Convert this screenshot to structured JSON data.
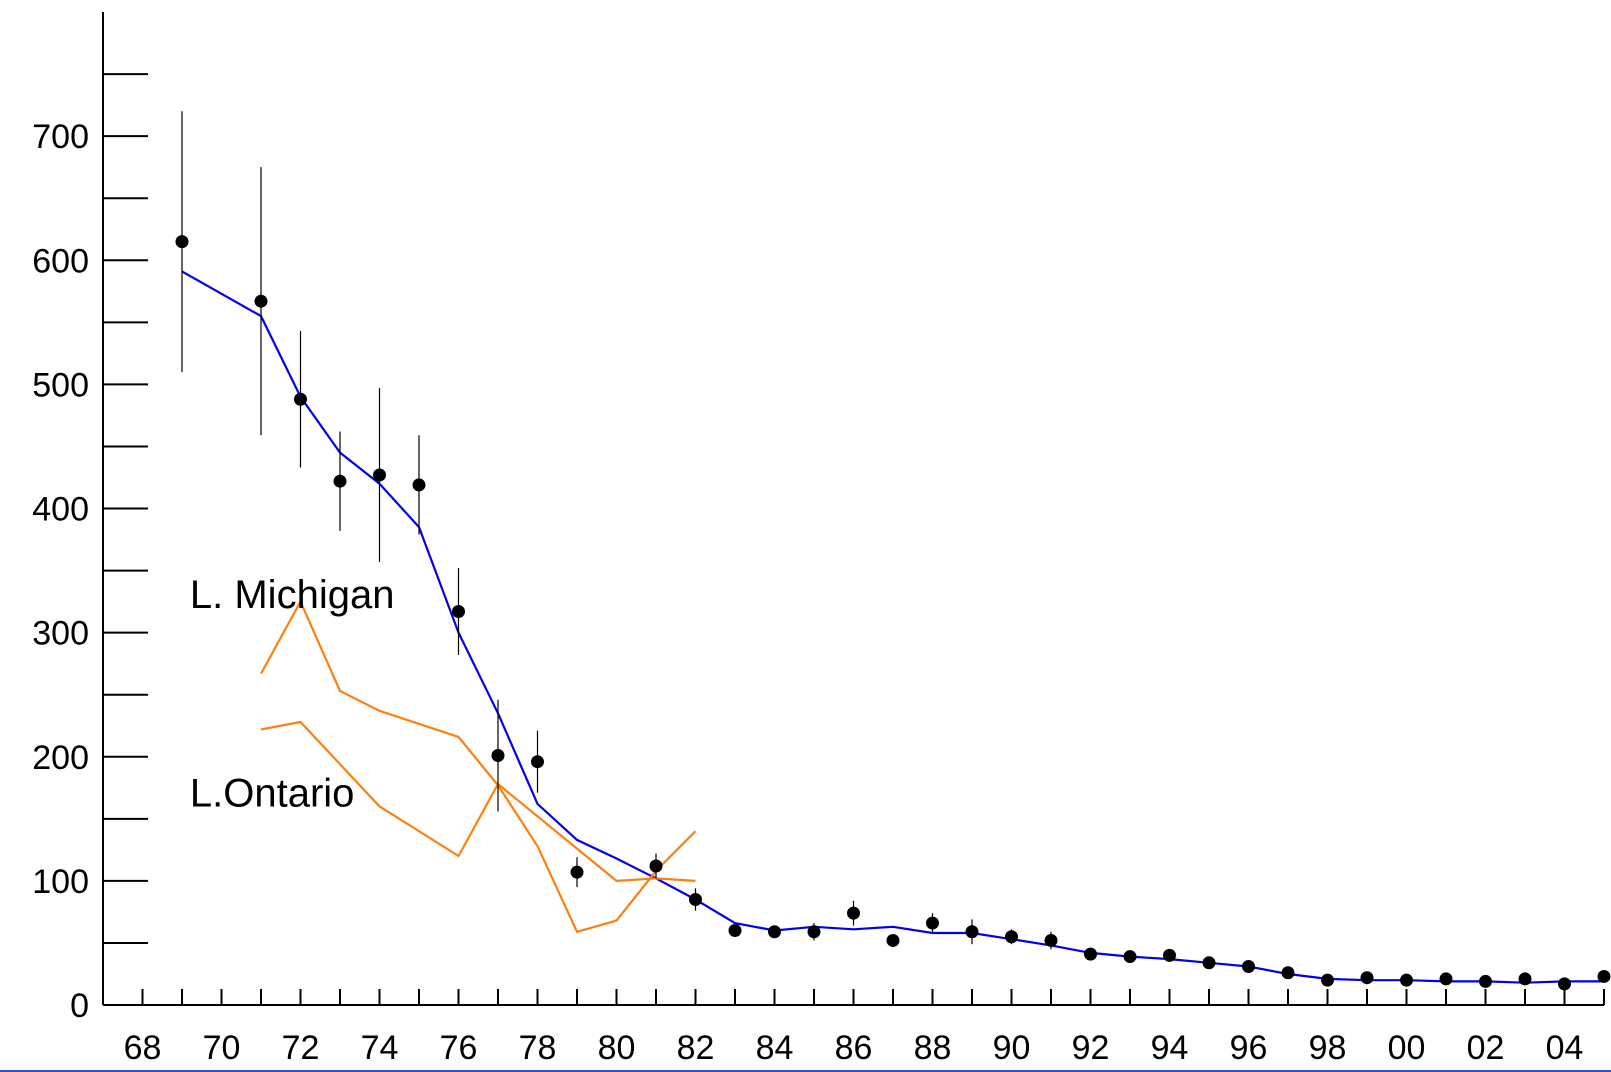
{
  "chart_data": {
    "type": "line",
    "title": "",
    "xlabel": "",
    "ylabel": "",
    "xlim": [
      1967,
      2005
    ],
    "ylim": [
      0,
      800
    ],
    "x_tick_labels": [
      {
        "x": 1968,
        "label": "68"
      },
      {
        "x": 1970,
        "label": "70"
      },
      {
        "x": 1972,
        "label": "72"
      },
      {
        "x": 1974,
        "label": "74"
      },
      {
        "x": 1976,
        "label": "76"
      },
      {
        "x": 1978,
        "label": "78"
      },
      {
        "x": 1980,
        "label": "80"
      },
      {
        "x": 1982,
        "label": "82"
      },
      {
        "x": 1984,
        "label": "84"
      },
      {
        "x": 1986,
        "label": "86"
      },
      {
        "x": 1988,
        "label": "88"
      },
      {
        "x": 1990,
        "label": "90"
      },
      {
        "x": 1992,
        "label": "92"
      },
      {
        "x": 1994,
        "label": "94"
      },
      {
        "x": 1996,
        "label": "96"
      },
      {
        "x": 1998,
        "label": "98"
      },
      {
        "x": 2000,
        "label": "00"
      },
      {
        "x": 2002,
        "label": "02"
      },
      {
        "x": 2004,
        "label": "04"
      }
    ],
    "y_tick_labels": [
      {
        "y": 0,
        "label": "0"
      },
      {
        "y": 100,
        "label": "100"
      },
      {
        "y": 200,
        "label": "200"
      },
      {
        "y": 300,
        "label": "300"
      },
      {
        "y": 400,
        "label": "400"
      },
      {
        "y": 500,
        "label": "500"
      },
      {
        "y": 600,
        "label": "600"
      },
      {
        "y": 700,
        "label": "700"
      }
    ],
    "points": {
      "x": [
        1969,
        1971,
        1972,
        1973,
        1974,
        1975,
        1976,
        1977,
        1978,
        1979,
        1981,
        1982,
        1983,
        1984,
        1985,
        1986,
        1987,
        1988,
        1989,
        1990,
        1991,
        1992,
        1993,
        1994,
        1995,
        1996,
        1997,
        1998,
        1999,
        2000,
        2001,
        2002,
        2003,
        2004,
        2005
      ],
      "y": [
        615,
        567,
        488,
        422,
        427,
        419,
        317,
        201,
        196,
        107,
        112,
        85,
        60,
        59,
        59,
        74,
        52,
        66,
        59,
        55,
        52,
        41,
        39,
        40,
        34,
        31,
        26,
        20,
        22,
        20,
        21,
        19,
        21,
        17,
        23
      ],
      "err": [
        105,
        108,
        55,
        40,
        70,
        40,
        35,
        45,
        25,
        12,
        10,
        9,
        5,
        5,
        7,
        10,
        5,
        8,
        10,
        6,
        7,
        4,
        4,
        4,
        3,
        3,
        3,
        2,
        2,
        2,
        2,
        2,
        2,
        2,
        2
      ]
    },
    "series": [
      {
        "color": "#0000ee",
        "x": [
          1969,
          1971,
          1972,
          1973,
          1974,
          1975,
          1976,
          1977,
          1978,
          1979,
          1980,
          1981,
          1982,
          1983,
          1984,
          1985,
          1986,
          1987,
          1988,
          1989,
          1990,
          1991,
          1992,
          1993,
          1994,
          1995,
          1996,
          1997,
          1998,
          1999,
          2000,
          2001,
          2002,
          2003,
          2004,
          2005
        ],
        "y": [
          591,
          555,
          490,
          445,
          420,
          385,
          300,
          235,
          162,
          133,
          118,
          102,
          85,
          66,
          60,
          63,
          61,
          63,
          58,
          58,
          53,
          48,
          42,
          39,
          37,
          34,
          31,
          25,
          21,
          20,
          20,
          19,
          19,
          18,
          19,
          19
        ]
      },
      {
        "color": "#ff7f0e",
        "x": [
          1971,
          1972,
          1973,
          1974,
          1976,
          1977,
          1978,
          1979,
          1980,
          1981,
          1982
        ],
        "y": [
          267,
          325,
          253,
          237,
          216,
          177,
          128,
          59,
          68,
          108,
          140
        ]
      },
      {
        "color": "#ff7f0e",
        "x": [
          1971,
          1972,
          1974,
          1976,
          1977,
          1978,
          1979,
          1980,
          1981,
          1982
        ],
        "y": [
          222,
          228,
          160,
          120,
          178,
          152,
          126,
          100,
          102,
          100
        ]
      }
    ],
    "annotations": [
      {
        "text": "L. Michigan",
        "x": 1969.2,
        "y": 320
      },
      {
        "text": "L.Ontario",
        "x": 1969.2,
        "y": 160
      }
    ],
    "grid": false,
    "legend": "none"
  }
}
